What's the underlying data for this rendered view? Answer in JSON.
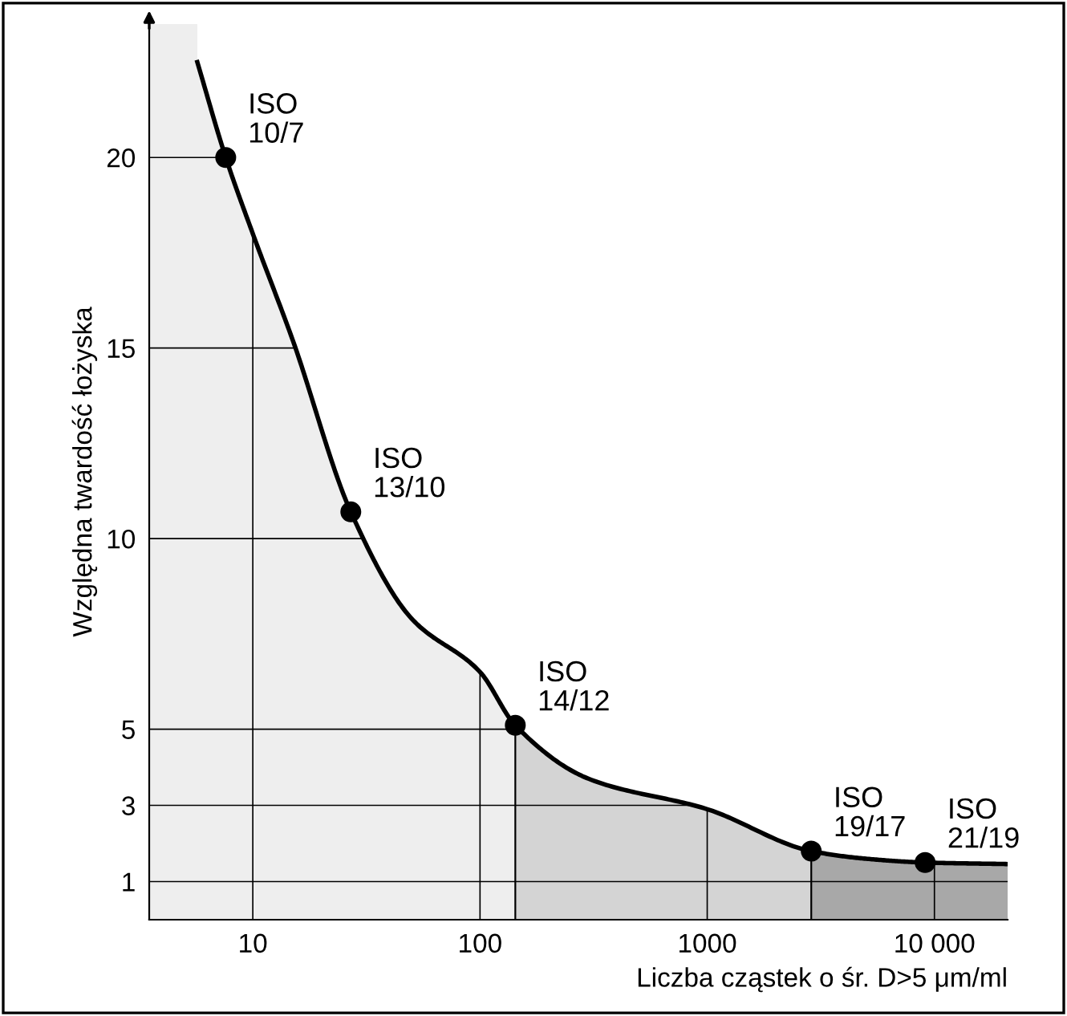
{
  "chart_data": {
    "type": "line",
    "xlabel": "Liczba cząstek o śr. D>5 μm/ml",
    "ylabel": "Względna twardość łożyska",
    "log": "x",
    "xlim": [
      3.5,
      21000
    ],
    "ylim": [
      0,
      23.5
    ],
    "xticks": [
      10,
      100,
      1000,
      {
        "value": 10000,
        "label": "10 000"
      }
    ],
    "yticks": [
      1,
      3,
      5,
      10,
      15,
      20
    ],
    "grid": true,
    "series": [
      {
        "color": "#000000",
        "marker": "none",
        "x": [
          5.7,
          7.6,
          10,
          15,
          27,
          50,
          100,
          143,
          300,
          1000,
          2870,
          5000,
          9100,
          21000
        ],
        "values": [
          22.5,
          20,
          18,
          15.2,
          10.7,
          7.9,
          6.5,
          5.1,
          3.7,
          2.9,
          1.8,
          1.6,
          1.5,
          1.46
        ]
      },
      {
        "type": "scatter",
        "color": "#000000",
        "marker": "circle",
        "x": [
          7.6,
          27,
          143,
          2870,
          9100
        ],
        "values": [
          20,
          10.7,
          5.1,
          1.8,
          1.5
        ]
      }
    ],
    "ref_lines": [
      {
        "axis": "x",
        "value": 143,
        "color": "#000000"
      },
      {
        "axis": "x",
        "value": 2870,
        "color": "#000000"
      }
    ],
    "bands": [
      {
        "axis": "x",
        "from": 3.5,
        "to": 143,
        "color": "#eeeeee"
      },
      {
        "axis": "x",
        "from": 143,
        "to": 2870,
        "color": "#d4d4d4"
      },
      {
        "axis": "x",
        "from": 2870,
        "to": 21000,
        "color": "#a8a8a8"
      }
    ],
    "annotations": [
      {
        "text": "ISO\n10/7",
        "x": 7.6,
        "y": 20
      },
      {
        "text": "ISO\n13/10",
        "x": 27,
        "y": 10.7
      },
      {
        "text": "ISO\n14/12",
        "x": 143,
        "y": 5.1
      },
      {
        "text": "ISO\n19/17",
        "x": 2870,
        "y": 1.8
      },
      {
        "text": "ISO\n21/19",
        "x": 9100,
        "y": 1.5
      }
    ]
  }
}
